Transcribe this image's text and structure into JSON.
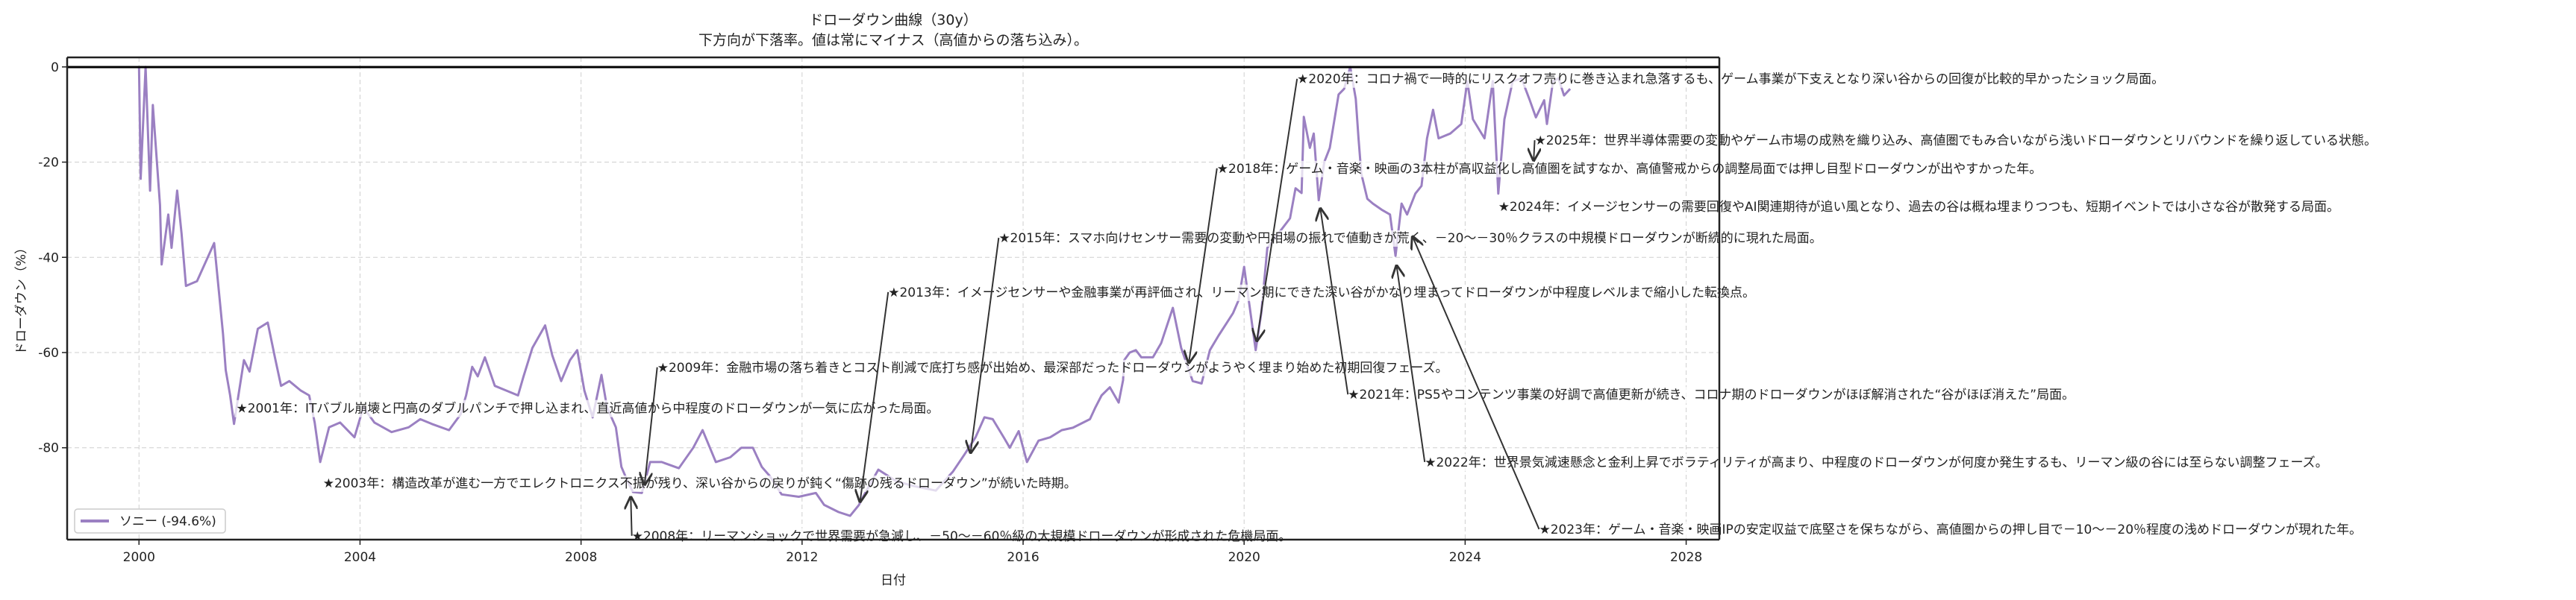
{
  "chart_data": {
    "type": "line",
    "title": "ドローダウン曲線（30y）",
    "subtitle": "下方向が下落率。値は常にマイナス（高値からの落ち込み）。",
    "xlabel": "日付",
    "ylabel": "ドローダウン（%）",
    "xlim": [
      1998.7,
      2028.6
    ],
    "ylim": [
      -99.3,
      2.0
    ],
    "xticks": [
      2000,
      2004,
      2008,
      2012,
      2016,
      2020,
      2024,
      2028
    ],
    "yticks": [
      0,
      -20,
      -40,
      -60,
      -80
    ],
    "grid": true,
    "zero_line": true,
    "legend_placement": "lower-left",
    "colors": {
      "series": "#9b80c2",
      "zero_line": "#000000",
      "annotation": "#333333"
    },
    "series": [
      {
        "name": "ソニー (-94.6%)",
        "points": [
          [
            2000.0,
            0
          ],
          [
            2000.03,
            -23.5
          ],
          [
            2000.12,
            0
          ],
          [
            2000.2,
            -26
          ],
          [
            2000.25,
            -8
          ],
          [
            2000.38,
            -29
          ],
          [
            2000.41,
            -41.5
          ],
          [
            2000.53,
            -31
          ],
          [
            2000.59,
            -38
          ],
          [
            2000.69,
            -26
          ],
          [
            2000.77,
            -35
          ],
          [
            2000.85,
            -46
          ],
          [
            2001.05,
            -45
          ],
          [
            2001.36,
            -37
          ],
          [
            2001.47,
            -50
          ],
          [
            2001.52,
            -56
          ],
          [
            2001.57,
            -63.7
          ],
          [
            2001.65,
            -69
          ],
          [
            2001.72,
            -75
          ],
          [
            2001.8,
            -69
          ],
          [
            2001.9,
            -61.6
          ],
          [
            2002.0,
            -64
          ],
          [
            2002.15,
            -55
          ],
          [
            2002.33,
            -53.7
          ],
          [
            2002.46,
            -61
          ],
          [
            2002.57,
            -67
          ],
          [
            2002.72,
            -66
          ],
          [
            2002.93,
            -68
          ],
          [
            2003.08,
            -69
          ],
          [
            2003.18,
            -74.7
          ],
          [
            2003.28,
            -83
          ],
          [
            2003.44,
            -75.7
          ],
          [
            2003.64,
            -74.7
          ],
          [
            2003.9,
            -77.8
          ],
          [
            2004.06,
            -71.5
          ],
          [
            2004.26,
            -74.7
          ],
          [
            2004.57,
            -76.7
          ],
          [
            2004.88,
            -75.7
          ],
          [
            2005.09,
            -74
          ],
          [
            2005.3,
            -75
          ],
          [
            2005.61,
            -76.3
          ],
          [
            2005.82,
            -73
          ],
          [
            2005.92,
            -69
          ],
          [
            2006.03,
            -63
          ],
          [
            2006.13,
            -65
          ],
          [
            2006.26,
            -61
          ],
          [
            2006.44,
            -67
          ],
          [
            2006.65,
            -68
          ],
          [
            2006.86,
            -69
          ],
          [
            2006.96,
            -65
          ],
          [
            2007.12,
            -59
          ],
          [
            2007.35,
            -54.3
          ],
          [
            2007.48,
            -60.6
          ],
          [
            2007.64,
            -66
          ],
          [
            2007.8,
            -61.6
          ],
          [
            2007.93,
            -59.5
          ],
          [
            2008.06,
            -68
          ],
          [
            2008.21,
            -73.6
          ],
          [
            2008.37,
            -64.7
          ],
          [
            2008.47,
            -71.5
          ],
          [
            2008.63,
            -75.7
          ],
          [
            2008.73,
            -84
          ],
          [
            2008.84,
            -87
          ],
          [
            2008.94,
            -89.3
          ],
          [
            2009.1,
            -89.5
          ],
          [
            2009.25,
            -83
          ],
          [
            2009.46,
            -83
          ],
          [
            2009.77,
            -84.3
          ],
          [
            2010.03,
            -80
          ],
          [
            2010.2,
            -76.3
          ],
          [
            2010.44,
            -83
          ],
          [
            2010.7,
            -82
          ],
          [
            2010.9,
            -80
          ],
          [
            2011.11,
            -80
          ],
          [
            2011.27,
            -84
          ],
          [
            2011.42,
            -86
          ],
          [
            2011.63,
            -89.8
          ],
          [
            2011.94,
            -90.3
          ],
          [
            2012.25,
            -89.5
          ],
          [
            2012.4,
            -92
          ],
          [
            2012.66,
            -93.5
          ],
          [
            2012.87,
            -94.3
          ],
          [
            2013.03,
            -92
          ],
          [
            2013.07,
            -91
          ],
          [
            2013.38,
            -84.6
          ],
          [
            2013.7,
            -87
          ],
          [
            2014.0,
            -88
          ],
          [
            2014.42,
            -89
          ],
          [
            2014.73,
            -85
          ],
          [
            2014.94,
            -81.4
          ],
          [
            2015.14,
            -77.8
          ],
          [
            2015.3,
            -73.6
          ],
          [
            2015.45,
            -74
          ],
          [
            2015.66,
            -78
          ],
          [
            2015.76,
            -80
          ],
          [
            2015.92,
            -76.5
          ],
          [
            2016.07,
            -83
          ],
          [
            2016.28,
            -78.5
          ],
          [
            2016.49,
            -77.8
          ],
          [
            2016.7,
            -76.3
          ],
          [
            2016.9,
            -75.8
          ],
          [
            2017.21,
            -74
          ],
          [
            2017.31,
            -71.5
          ],
          [
            2017.42,
            -69
          ],
          [
            2017.57,
            -67.3
          ],
          [
            2017.73,
            -70.5
          ],
          [
            2017.81,
            -65.8
          ],
          [
            2017.83,
            -61.6
          ],
          [
            2017.93,
            -60
          ],
          [
            2018.04,
            -59.5
          ],
          [
            2018.14,
            -61
          ],
          [
            2018.35,
            -61
          ],
          [
            2018.5,
            -58
          ],
          [
            2018.71,
            -50.6
          ],
          [
            2018.86,
            -59
          ],
          [
            2019.07,
            -66
          ],
          [
            2019.23,
            -66.5
          ],
          [
            2019.38,
            -59.5
          ],
          [
            2019.54,
            -56.4
          ],
          [
            2019.69,
            -53.7
          ],
          [
            2019.8,
            -51.7
          ],
          [
            2019.9,
            -49
          ],
          [
            2020.0,
            -42
          ],
          [
            2020.21,
            -59.5
          ],
          [
            2020.31,
            -51.7
          ],
          [
            2020.42,
            -38
          ],
          [
            2020.62,
            -35
          ],
          [
            2020.83,
            -31.8
          ],
          [
            2020.93,
            -25.5
          ],
          [
            2021.04,
            -26.5
          ],
          [
            2021.08,
            -10.5
          ],
          [
            2021.19,
            -17
          ],
          [
            2021.26,
            -14
          ],
          [
            2021.35,
            -28
          ],
          [
            2021.45,
            -20
          ],
          [
            2021.55,
            -17
          ],
          [
            2021.71,
            -5.8
          ],
          [
            2021.81,
            -4.6
          ],
          [
            2021.92,
            0
          ],
          [
            2022.02,
            -6.7
          ],
          [
            2022.07,
            -15
          ],
          [
            2022.12,
            -22.4
          ],
          [
            2022.23,
            -27.7
          ],
          [
            2022.33,
            -28.7
          ],
          [
            2022.49,
            -30
          ],
          [
            2022.64,
            -31
          ],
          [
            2022.74,
            -39.7
          ],
          [
            2022.85,
            -28.7
          ],
          [
            2022.95,
            -31
          ],
          [
            2023.1,
            -26.6
          ],
          [
            2023.21,
            -25
          ],
          [
            2023.31,
            -15
          ],
          [
            2023.42,
            -9
          ],
          [
            2023.52,
            -15
          ],
          [
            2023.73,
            -14
          ],
          [
            2023.93,
            -12
          ],
          [
            2024.04,
            -3
          ],
          [
            2024.14,
            -11
          ],
          [
            2024.35,
            -15
          ],
          [
            2024.5,
            -3
          ],
          [
            2024.6,
            -26.6
          ],
          [
            2024.71,
            -11
          ],
          [
            2024.86,
            -3
          ],
          [
            2025.02,
            -2.4
          ],
          [
            2025.17,
            -7
          ],
          [
            2025.28,
            -10.6
          ],
          [
            2025.43,
            -7
          ],
          [
            2025.48,
            -12
          ],
          [
            2025.59,
            -3
          ],
          [
            2025.69,
            -2.4
          ],
          [
            2025.79,
            -6
          ],
          [
            2025.9,
            -4.6
          ]
        ]
      }
    ],
    "annotations": [
      {
        "text": "★2001年：ITバブル崩壊と円高のダブルパンチで押し込まれ、直近高値から中程度のドローダウンが一気に広がった局面。",
        "xy": [
          2001.88,
          -71.7
        ],
        "xytext": [
          2001.88,
          -71.7
        ]
      },
      {
        "text": "★2003年：構造改革が進む一方でエレクトロニクス不振が残り、深い谷からの戻りが鈍く“傷跡の残るドローダウン”が続いた時期。",
        "xy": [
          2003.45,
          -87.4
        ],
        "xytext": [
          2003.45,
          -87.4
        ]
      },
      {
        "text": "★2008年：リーマンショックで世界需要が急減し、－50～－60％級の大規模ドローダウンが形成された危機局面。",
        "xy": [
          2008.9,
          -90.4
        ],
        "xytext": [
          2009.04,
          -98.5
        ]
      },
      {
        "text": "★2009年：金融市場の落ち着きとコスト削減で底打ち感が出始め、最深部だったドローダウンがようやく埋まり始めた初期回復フェーズ。",
        "xy": [
          2009.15,
          -87.7
        ],
        "xytext": [
          2009.5,
          -63.1
        ]
      },
      {
        "text": "★2013年：イメージセンサーや金融事業が再評価され、リーマン期にできた深い谷がかなり埋まってドローダウンが中程度レベルまで縮小した転換点。",
        "xy": [
          2013.05,
          -91.3
        ],
        "xytext": [
          2013.68,
          -47.3
        ]
      },
      {
        "text": "★2015年：スマホ向けセンサー需要の変動や円相場の振れで値動きが荒く、－20～－30％クラスの中規模ドローダウンが断続的に現れた局面。",
        "xy": [
          2015.05,
          -81.0
        ],
        "xytext": [
          2015.68,
          -35.9
        ]
      },
      {
        "text": "★2018年：ゲーム・音楽・映画の3本柱が高収益化し高値圏を試すなか、高値警戒からの調整局面では押し目型ドローダウンが出やすかった年。",
        "xy": [
          2019.0,
          -62.1
        ],
        "xytext": [
          2019.63,
          -21.3
        ]
      },
      {
        "text": "★2020年：コロナ禍で一時的にリスクオフ売りに巻き込まれ急落するも、ゲーム事業が下支えとなり深い谷からの回復が比較的早かったショック局面。",
        "xy": [
          2020.23,
          -57.5
        ],
        "xytext": [
          2021.08,
          -2.5
        ]
      },
      {
        "text": "★2021年：PS5やコンテンツ事業の好調で高値更新が続き、コロナ期のドローダウンがほぼ解消された“谷がほぼ消えた”局面。",
        "xy": [
          2021.38,
          -29.8
        ],
        "xytext": [
          2022.0,
          -68.8
        ]
      },
      {
        "text": "★2022年：世界景気減速懸念と金利上昇でボラティリティが高まり、中程度のドローダウンが何度か発生するも、リーマン級の谷には至らない調整フェーズ。",
        "xy": [
          2022.76,
          -41.8
        ],
        "xytext": [
          2023.39,
          -83.0
        ]
      },
      {
        "text": "★2023年：ゲーム・音楽・映画IPの安定収益で底堅さを保ちながら、高値圏からの押し目で－10～－20％程度の浅めドローダウンが現れた年。",
        "xy": [
          2023.05,
          -35.7
        ],
        "xytext": [
          2025.46,
          -97.1
        ]
      },
      {
        "text": "★2024年：イメージセンサーの需要回復やAI関連期待が追い風となり、過去の谷は概ね埋まりつつも、短期イベントでは小さな谷が散発する局面。",
        "xy": [
          2024.72,
          -29.3
        ],
        "xytext": [
          2024.72,
          -29.3
        ]
      },
      {
        "text": "★2025年：世界半導体需要の変動やゲーム市場の成熟を織り込み、高値圏でもみ合いながら浅いドローダウンとリバウンドを繰り返している状態。",
        "xy": [
          2025.24,
          -19.6
        ],
        "xytext": [
          2025.38,
          -15.4
        ]
      }
    ]
  }
}
